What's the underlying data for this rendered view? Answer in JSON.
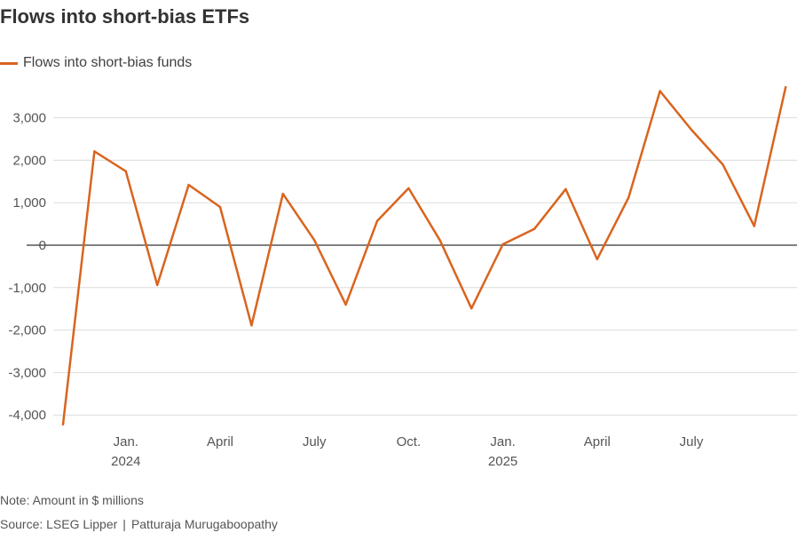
{
  "title": "Flows into short-bias ETFs",
  "note": "Note: Amount in $ millions",
  "source": "Source: LSEG Lipper",
  "author": "Patturaja Murugaboopathy",
  "colors": {
    "line": "#d9641e",
    "grid": "#dcdcdc",
    "zero": "#333333"
  },
  "chart_data": {
    "type": "line",
    "title": "Flows into short-bias ETFs",
    "xlabel": "",
    "ylabel": "",
    "ylim": [
      -4300,
      3800
    ],
    "yticks": [
      3000,
      2000,
      1000,
      0,
      -1000,
      -2000,
      -3000,
      -4000
    ],
    "ytick_labels": [
      "3,000",
      "2,000",
      "1,000",
      "0",
      "-1,000",
      "-2,000",
      "-3,000",
      "-4,000"
    ],
    "xticks": [
      {
        "label": "Jan.",
        "sub": "2024",
        "month": "2024-01"
      },
      {
        "label": "April",
        "sub": "",
        "month": "2024-04"
      },
      {
        "label": "July",
        "sub": "",
        "month": "2024-07"
      },
      {
        "label": "Oct.",
        "sub": "",
        "month": "2024-10"
      },
      {
        "label": "Jan.",
        "sub": "2025",
        "month": "2025-01"
      },
      {
        "label": "April",
        "sub": "",
        "month": "2025-04"
      },
      {
        "label": "July",
        "sub": "",
        "month": "2025-07"
      }
    ],
    "grid": true,
    "legend": "top-left",
    "series": [
      {
        "name": "Flows into short-bias funds",
        "x": [
          "2023-11",
          "2023-12",
          "2024-01",
          "2024-02",
          "2024-03",
          "2024-04",
          "2024-05",
          "2024-06",
          "2024-07",
          "2024-08",
          "2024-09",
          "2024-10",
          "2024-11",
          "2024-12",
          "2025-01",
          "2025-02",
          "2025-03",
          "2025-04",
          "2025-05",
          "2025-06",
          "2025-07",
          "2025-08",
          "2025-09",
          "2025-10"
        ],
        "values": [
          -4220,
          2210,
          1740,
          -940,
          1420,
          900,
          -1890,
          1210,
          120,
          -1400,
          570,
          1340,
          110,
          -1490,
          20,
          380,
          1320,
          -330,
          1120,
          3630,
          2720,
          1900,
          450,
          3720
        ]
      }
    ]
  }
}
